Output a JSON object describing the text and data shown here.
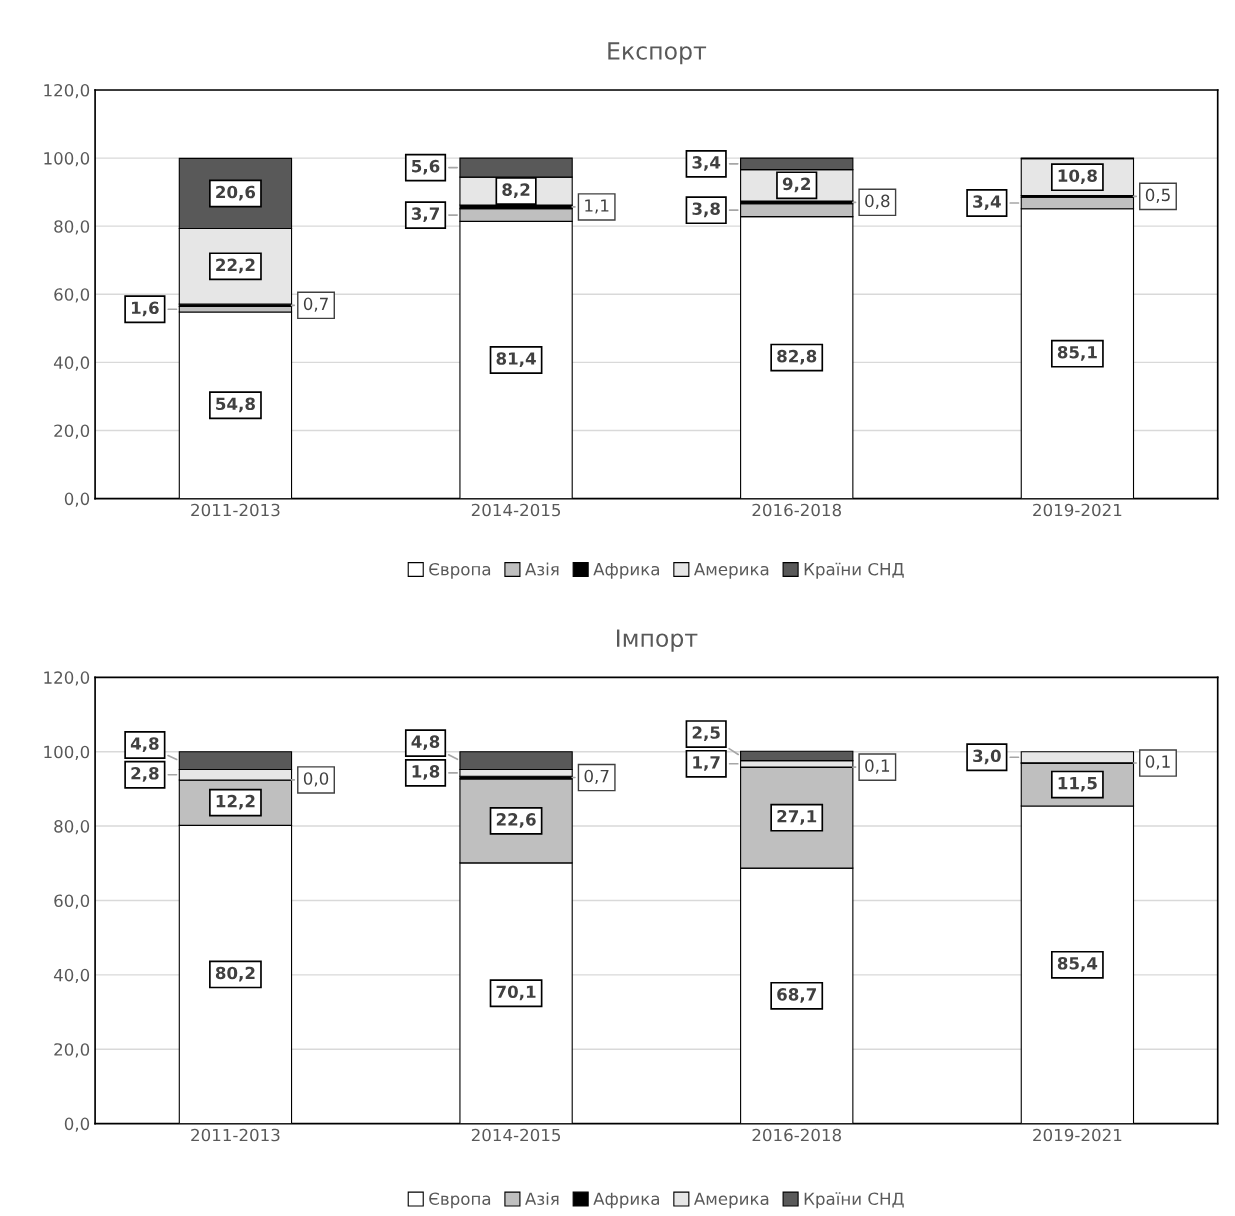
{
  "chart_data": [
    {
      "type": "bar",
      "title": "Експорт",
      "stacked": true,
      "categories": [
        "2011-2013",
        "2014-2015",
        "2016-2018",
        "2019-2021"
      ],
      "series": [
        {
          "name": "Європа",
          "color": "#ffffff",
          "values": [
            54.8,
            81.4,
            82.8,
            85.1
          ],
          "value_labels": [
            "54,8",
            "81,4",
            "82,8",
            "85,1"
          ]
        },
        {
          "name": "Азія",
          "color": "#bfbfbf",
          "values": [
            1.6,
            3.7,
            3.8,
            3.4
          ],
          "value_labels": [
            "1,6",
            "3,7",
            "3,8",
            "3,4"
          ]
        },
        {
          "name": "Африка",
          "color": "#000000",
          "values": [
            0.7,
            1.1,
            0.8,
            0.5
          ],
          "value_labels": [
            "0,7",
            "1,1",
            "0,8",
            "0,5"
          ]
        },
        {
          "name": "Америка",
          "color": "#e6e6e6",
          "values": [
            22.2,
            8.2,
            9.2,
            10.8
          ],
          "value_labels": [
            "22,2",
            "8,2",
            "9,2",
            "10,8"
          ]
        },
        {
          "name": "Країни СНД",
          "color": "#595959",
          "values": [
            20.6,
            5.6,
            3.4,
            0.2
          ],
          "value_labels": [
            "20,6",
            "5,6",
            "3,4",
            null
          ]
        }
      ],
      "ylim": [
        0,
        120
      ],
      "yticks": [
        {
          "value": 0,
          "label": "0,0"
        },
        {
          "value": 20,
          "label": "20,0"
        },
        {
          "value": 40,
          "label": "40,0"
        },
        {
          "value": 60,
          "label": "60,0"
        },
        {
          "value": 80,
          "label": "80,0"
        },
        {
          "value": 100,
          "label": "100,0"
        },
        {
          "value": 120,
          "label": "120,0"
        }
      ],
      "grid": "y",
      "legend": "bottom"
    },
    {
      "type": "bar",
      "title": "Імпорт",
      "stacked": true,
      "categories": [
        "2011-2013",
        "2014-2015",
        "2016-2018",
        "2019-2021"
      ],
      "series": [
        {
          "name": "Європа",
          "color": "#ffffff",
          "values": [
            80.2,
            70.1,
            68.7,
            85.4
          ],
          "value_labels": [
            "80,2",
            "70,1",
            "68,7",
            "85,4"
          ]
        },
        {
          "name": "Азія",
          "color": "#bfbfbf",
          "values": [
            12.2,
            22.6,
            27.1,
            11.5
          ],
          "value_labels": [
            "12,2",
            "22,6",
            "27,1",
            "11,5"
          ]
        },
        {
          "name": "Африка",
          "color": "#000000",
          "values": [
            0.0,
            0.7,
            0.1,
            0.1
          ],
          "value_labels": [
            "0,0",
            "0,7",
            "0,1",
            "0,1"
          ]
        },
        {
          "name": "Америка",
          "color": "#e6e6e6",
          "values": [
            2.8,
            1.8,
            1.7,
            3.0
          ],
          "value_labels": [
            "2,8",
            "1,8",
            "1,7",
            "3,0"
          ]
        },
        {
          "name": "Країни СНД",
          "color": "#595959",
          "values": [
            4.8,
            4.8,
            2.5,
            null
          ],
          "value_labels": [
            "4,8",
            "4,8",
            "2,5",
            null
          ]
        }
      ],
      "ylim": [
        0,
        120
      ],
      "yticks": [
        {
          "value": 0,
          "label": "0,0"
        },
        {
          "value": 20,
          "label": "20,0"
        },
        {
          "value": 40,
          "label": "40,0"
        },
        {
          "value": 60,
          "label": "60,0"
        },
        {
          "value": 80,
          "label": "80,0"
        },
        {
          "value": 100,
          "label": "100,0"
        },
        {
          "value": 120,
          "label": "120,0"
        }
      ],
      "grid": "y",
      "legend": "bottom"
    }
  ]
}
